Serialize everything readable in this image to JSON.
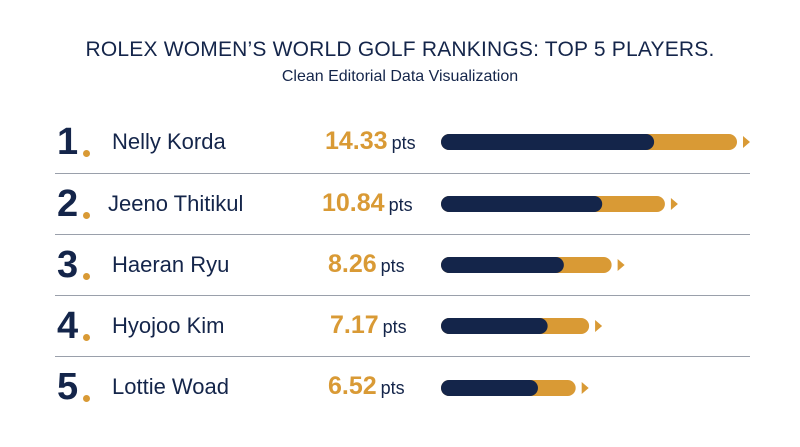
{
  "title": "ROLEX WOMEN’S WORLD GOLF RANKINGS: TOP 5 PLAYERS.",
  "subtitle": "Clean Editorial Data Visualization",
  "colors": {
    "navy": "#14254a",
    "gold": "#d99a35",
    "divider": "#9aa0ab"
  },
  "chart_data": {
    "type": "bar",
    "orientation": "horizontal",
    "title": "ROLEX WOMEN’S WORLD GOLF RANKINGS: TOP 5 PLAYERS.",
    "subtitle": "Clean Editorial Data Visualization",
    "categories": [
      "Nelly Korda",
      "Jeeno Thitikul",
      "Haeran Ryu",
      "Hyojoo Kim",
      "Lottie Woad"
    ],
    "ranks": [
      "1",
      "2",
      "3",
      "4",
      "5"
    ],
    "values": [
      14.33,
      10.84,
      8.26,
      7.17,
      6.52
    ],
    "value_labels": [
      "14.33",
      "10.84",
      "8.26",
      "7.17",
      "6.52"
    ],
    "unit": "pts",
    "grid": false,
    "legend": "none"
  }
}
